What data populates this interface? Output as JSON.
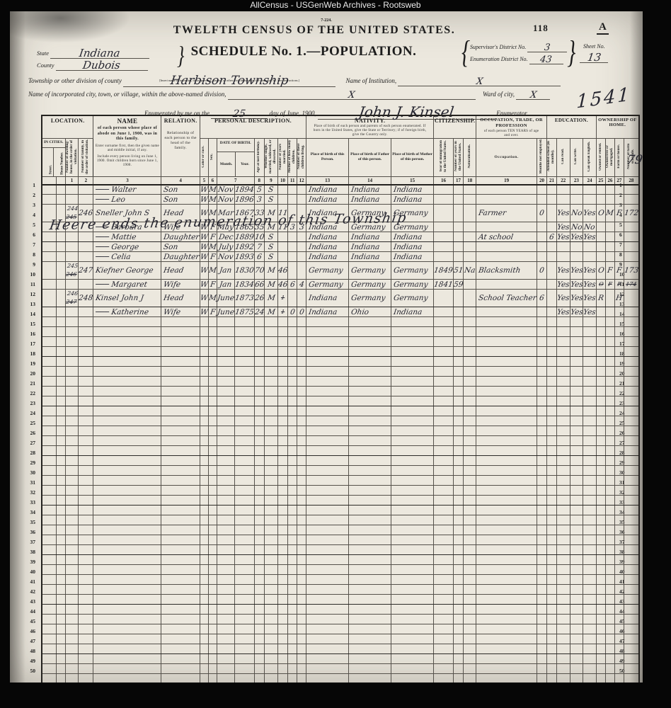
{
  "topbar": {
    "title": "AllCensus - USGenWeb Archives - Rootsweb"
  },
  "page": {
    "form_number": "7-224.",
    "census_title": "TWELFTH CENSUS OF THE UNITED STATES.",
    "page_number": "118",
    "page_letter": "A",
    "schedule_title": "SCHEDULE No. 1.—POPULATION.",
    "state_label": "State",
    "state_value": "Indiana",
    "county_label": "County",
    "county_value": "Dubois",
    "supervisor_district_label": "Supervisor's District No.",
    "supervisor_district_value": "3",
    "enumeration_district_label": "Enumeration District No.",
    "enumeration_district_value": "43",
    "sheet_no_label": "Sheet No.",
    "sheet_no_value": "13",
    "township_label": "Township or other division of county",
    "township_value": "Harbison Township",
    "township_note": "[Insert name of township, town, precinct, district, or other civil division, as the case may be.  See instructions.]",
    "institution_label": "Name of Institution,",
    "institution_value": "X",
    "city_label": "Name of incorporated city, town, or village, within the above-named division,",
    "city_value": "X",
    "ward_label": "Ward of city,",
    "ward_value": "X",
    "stamp_number": "1541",
    "enumerated_prefix": "Enumerated by me on the",
    "enumerated_day": "25",
    "enumerated_mid": "day of June, 1900,",
    "enumerator_name": "John J. Kinsel",
    "enumerated_suffix": "Enumerator.",
    "side_note": "79"
  },
  "table": {
    "groups": {
      "location": "LOCATION.",
      "name_title": "NAME",
      "name_desc": "of each person whose place of abode on June 1, 1900, was in this family.",
      "name_note1": "Enter surname first, then the given name and middle initial, if any.",
      "name_note2": "Include every person living on June 1, 1900. Omit children born since June 1, 1900.",
      "relation_title": "RELATION.",
      "relation_desc": "Relationship of each person to the head of the family.",
      "personal": "PERSONAL DESCRIPTION.",
      "nativity_title": "NATIVITY.",
      "nativity_desc": "Place of birth of each person and parents of each person enumerated. If born in the United States, give the State or Territory; if of foreign birth, give the Country only.",
      "citizenship": "CITIZENSHIP.",
      "occupation_title": "OCCUPATION, TRADE, OR PROFESSION",
      "occupation_desc": "of each person TEN YEARS of age and over.",
      "education": "EDUCATION.",
      "ownership": "OWNERSHIP OF HOME."
    },
    "columns": {
      "in_cities": "IN CITIES.",
      "street": "Street.",
      "house_number": "House Number.",
      "dwelling": "Number of dwelling-house, in the order of visitation.",
      "family": "Number of family, in the order of visitation.",
      "color": "Color or race.",
      "sex": "Sex.",
      "dob": "DATE OF BIRTH.",
      "month": "Month.",
      "year": "Year.",
      "age": "Age at last birthday.",
      "marital": "Whether single, married, widowed, or divorced.",
      "years_married": "Number of years married.",
      "mother_children": "Mother of how many children.",
      "children_living": "Number of these children living.",
      "pob_person": "Place of birth of this Person.",
      "pob_father": "Place of birth of Father of this person.",
      "pob_mother": "Place of birth of Mother of this person.",
      "immigration": "Year of immigration to the United States.",
      "years_us": "Number of years in the United States.",
      "naturalization": "Naturalization.",
      "occupation": "Occupation.",
      "months_not_employed": "Months not employed.",
      "attended_school": "Attended school (in months).",
      "can_read": "Can read.",
      "can_write": "Can write.",
      "can_speak": "Can speak English.",
      "owned_rented": "Owned or rented.",
      "owned_free_mortgaged": "Owned free or mortgaged.",
      "farm_house": "Farm or house.",
      "farm_schedule": "Number of farm schedule."
    },
    "numbers": [
      "1",
      "2",
      "3",
      "4",
      "5",
      "6",
      "7",
      "8",
      "9",
      "10",
      "11",
      "12",
      "13",
      "14",
      "15",
      "16",
      "17",
      "18",
      "19",
      "20",
      "21",
      "22",
      "23",
      "24",
      "25",
      "26",
      "27",
      "28"
    ],
    "row_count": 50,
    "end_note": "Heere ends the enumeration of this Township",
    "rows": [
      {
        "n": 1,
        "name": "─── Walter",
        "relation": "Son",
        "color": "W",
        "sex": "M",
        "birth_month": "Nov",
        "birth_year": "1894",
        "age": "5",
        "marital": "S",
        "pob": "Indiana",
        "pob_father": "Indiana",
        "pob_mother": "Indiana"
      },
      {
        "n": 2,
        "name": "─── Leo",
        "relation": "Son",
        "color": "W",
        "sex": "M",
        "birth_month": "Nov",
        "birth_year": "1896",
        "age": "3",
        "marital": "S",
        "pob": "Indiana",
        "pob_father": "Indiana",
        "pob_mother": "Indiana"
      },
      {
        "n": 3,
        "dwelling": {
          "v": "244",
          "struck": "245"
        },
        "family": "246",
        "name": "Sneller John S",
        "relation": "Head",
        "color": "W",
        "sex": "M",
        "birth_month": "Mar",
        "birth_year": "1867",
        "age": "33",
        "marital": "M",
        "years_married": "11",
        "pob": "Indiana",
        "pob_father": "Germany",
        "pob_mother": "Germany",
        "occupation": "Farmer",
        "months_not_employed": "0",
        "can_read": "Yes",
        "can_write": "No",
        "can_speak_english": "Yes",
        "home_owned": "O",
        "home_mortgage": "M",
        "farm_or_house": "F",
        "farm_schedule": "172"
      },
      {
        "n": 4,
        "name": "─── Barbara",
        "relation": "Wife",
        "color": "W",
        "sex": "F",
        "birth_month": "May",
        "birth_year": "1865",
        "age": "35",
        "marital": "M",
        "years_married": "11",
        "mother_of": "3",
        "children_living": "3",
        "pob": "Indiana",
        "pob_father": "Germany",
        "pob_mother": "Germany",
        "can_read": "Yes",
        "can_write": "No",
        "can_speak_english": "No"
      },
      {
        "n": 5,
        "name": "─── Mattie",
        "relation": "Daughter",
        "color": "W",
        "sex": "F",
        "birth_month": "Dec",
        "birth_year": "1889",
        "age": "10",
        "marital": "S",
        "pob": "Indiana",
        "pob_father": "Indiana",
        "pob_mother": "Indiana",
        "occupation": "At school",
        "attended_school": "6",
        "can_read": "Yes",
        "can_write": "Yes",
        "can_speak_english": "Yes"
      },
      {
        "n": 6,
        "name": "─── George",
        "relation": "Son",
        "color": "W",
        "sex": "M",
        "birth_month": "July",
        "birth_year": "1892",
        "age": "7",
        "marital": "S",
        "pob": "Indiana",
        "pob_father": "Indiana",
        "pob_mother": "Indiana"
      },
      {
        "n": 7,
        "name": "─── Celia",
        "relation": "Daughter",
        "color": "W",
        "sex": "F",
        "birth_month": "Nov",
        "birth_year": "1893",
        "age": "6",
        "marital": "S",
        "pob": "Indiana",
        "pob_father": "Indiana",
        "pob_mother": "Indiana"
      },
      {
        "n": 8,
        "dwelling": {
          "v": "245",
          "struck": "246"
        },
        "family": "247",
        "name": "Kiefner George",
        "relation": "Head",
        "color": "W",
        "sex": "M",
        "birth_month": "Jan",
        "birth_year": "1830",
        "age": "70",
        "marital": "M",
        "years_married": "46",
        "pob": "Germany",
        "pob_father": "Germany",
        "pob_mother": "Germany",
        "immigration_year": "1849",
        "years_in_us": "51",
        "naturalization": "Na",
        "occupation": "Blacksmith",
        "months_not_employed": "0",
        "can_read": "Yes",
        "can_write": "Yes",
        "can_speak_english": "Yes",
        "home_owned": "O",
        "home_mortgage": "F",
        "farm_or_house": "F",
        "farm_schedule": "173"
      },
      {
        "n": 9,
        "name": "─── Margaret",
        "relation": "Wife",
        "color": "W",
        "sex": "F",
        "birth_month": "Jan",
        "birth_year": "1834",
        "age": "66",
        "marital": "M",
        "years_married": "46",
        "mother_of": "6",
        "children_living": "4",
        "pob": "Germany",
        "pob_father": "Germany",
        "pob_mother": "Germany",
        "immigration_year": "1841",
        "years_in_us": "59",
        "can_read": "Yes",
        "can_write": "Yes",
        "can_speak_english": "Yes",
        "home_owned": {
          "struck": "O"
        },
        "home_mortgage": {
          "struck": "F"
        },
        "farm_or_house": {
          "struck": "F"
        },
        "farm_schedule": {
          "struck": "174"
        }
      },
      {
        "n": 10,
        "dwelling": {
          "v": "246",
          "struck": "247"
        },
        "family": "248",
        "name": "Kinsel John J",
        "relation": "Head",
        "color": "W",
        "sex": "M",
        "birth_month": "June",
        "birth_year": "1873",
        "age": "26",
        "marital": "M",
        "years_married": {
          "struck": "1"
        },
        "pob": "Indiana",
        "pob_father": "Germany",
        "pob_mother": "Germany",
        "occupation": "School Teacher",
        "months_not_employed": "6",
        "can_read": "Yes",
        "can_write": "Yes",
        "can_speak_english": "Yes",
        "home_owned": "R",
        "farm_or_house": "H"
      },
      {
        "n": 11,
        "name": "─── Katherine",
        "relation": "Wife",
        "color": "W",
        "sex": "F",
        "birth_month": "June",
        "birth_year": "1875",
        "age": "24",
        "marital": "M",
        "years_married": {
          "struck": "1"
        },
        "mother_of": "0",
        "children_living": "0",
        "pob": "Indiana",
        "pob_father": "Ohio",
        "pob_mother": "Indiana",
        "can_read": "Yes",
        "can_write": "Yes",
        "can_speak_english": "Yes"
      }
    ]
  }
}
